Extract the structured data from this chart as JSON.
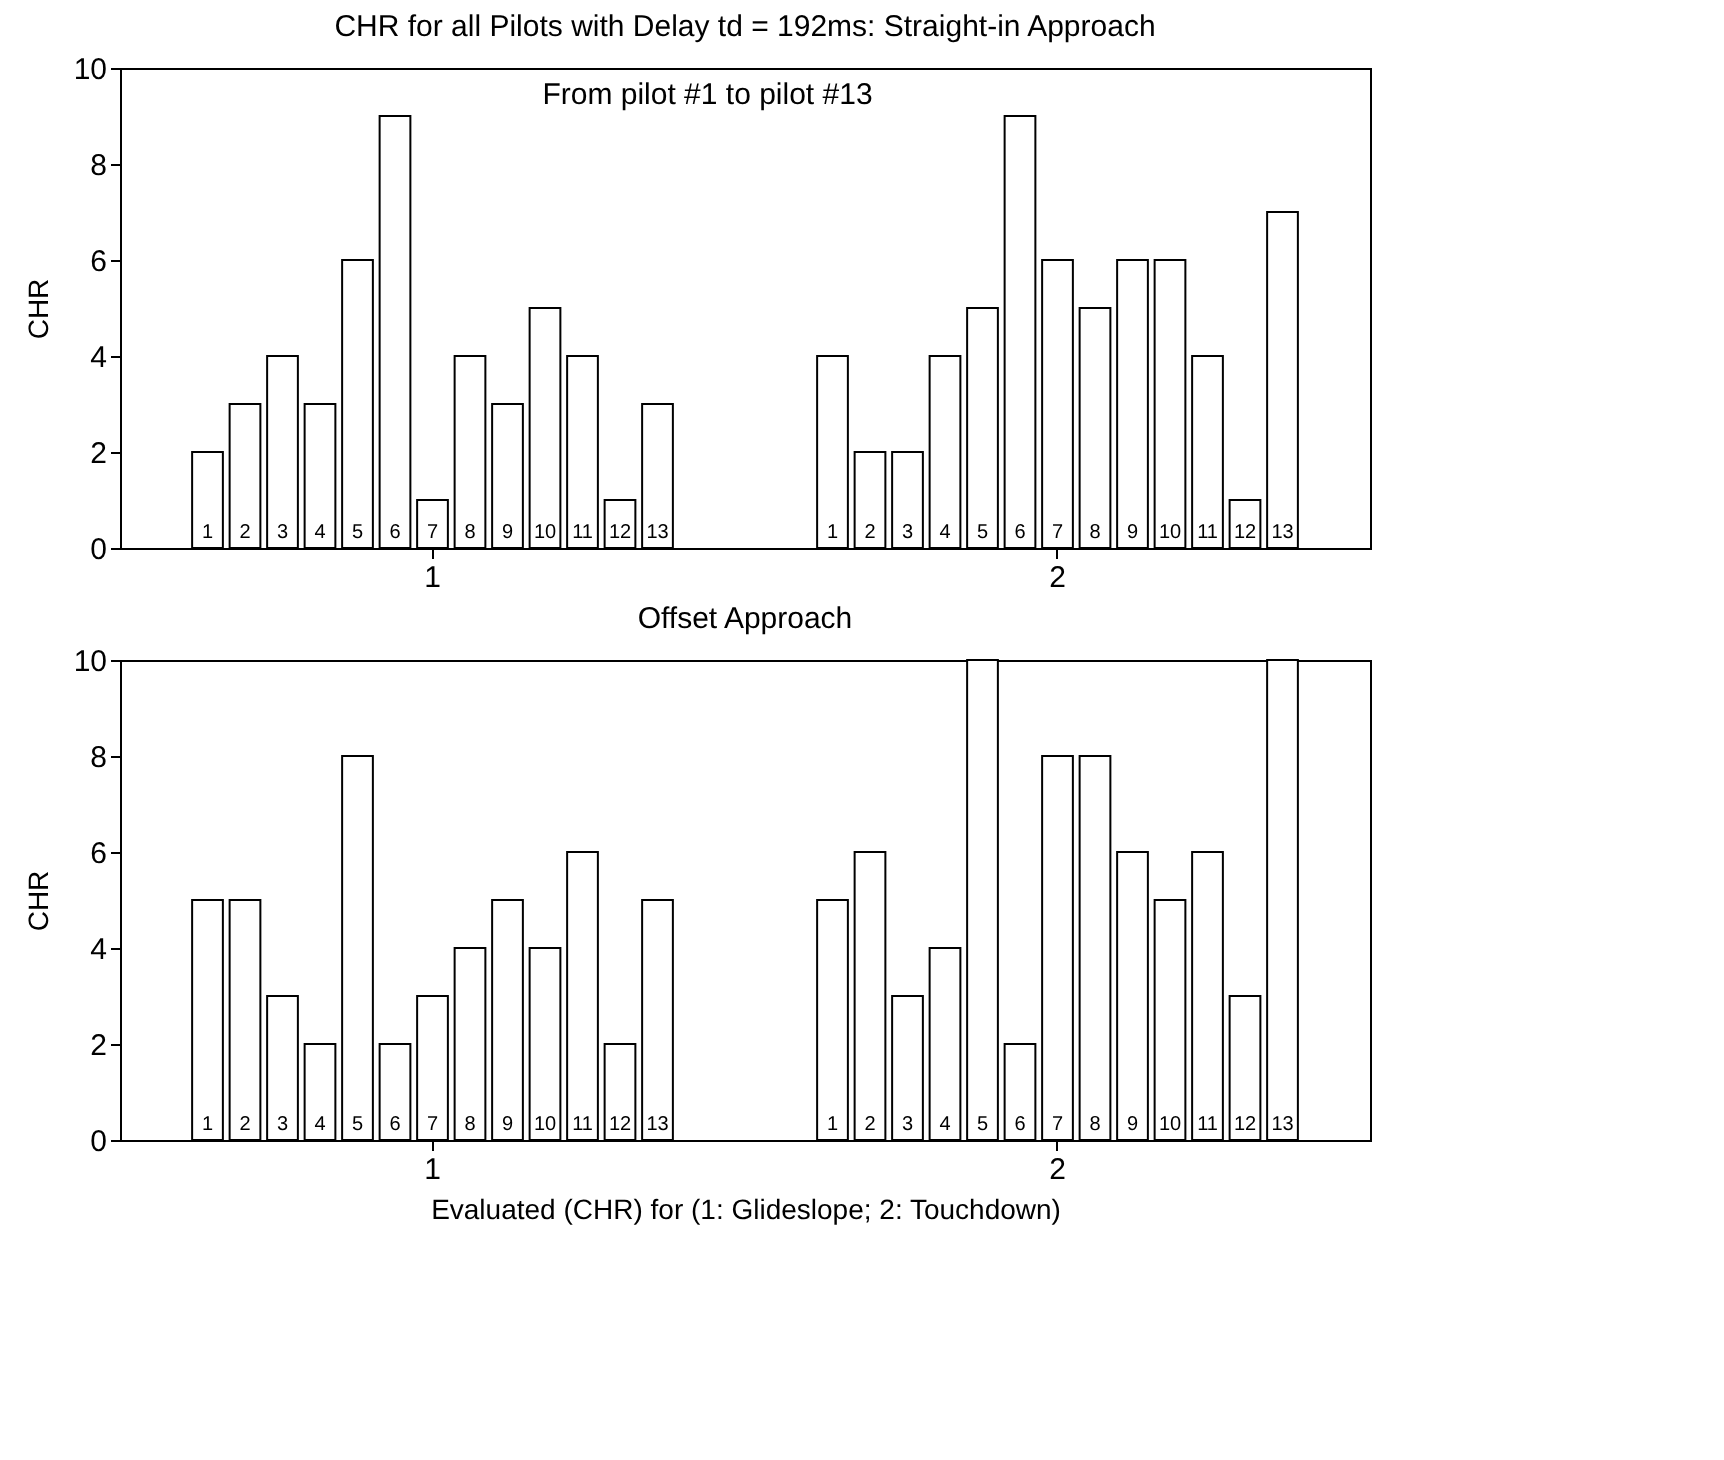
{
  "chart_data": [
    {
      "type": "bar",
      "title": "CHR for all Pilots with Delay td = 192ms: Straight-in Approach",
      "ylabel": "CHR",
      "annotations": [
        "From pilot #1    to pilot #13"
      ],
      "categories": [
        "1",
        "2"
      ],
      "ylim": [
        0,
        10
      ],
      "yticks": [
        0,
        2,
        4,
        6,
        8,
        10
      ],
      "grid": false,
      "legend": false,
      "series": [
        {
          "name": "1",
          "color": "#ffffff",
          "values": [
            2,
            4
          ]
        },
        {
          "name": "2",
          "color": "#ffffff",
          "values": [
            3,
            2
          ]
        },
        {
          "name": "3",
          "color": "#ffffff",
          "values": [
            4,
            2
          ]
        },
        {
          "name": "4",
          "color": "#ffffff",
          "values": [
            3,
            4
          ]
        },
        {
          "name": "5",
          "color": "#ffffff",
          "values": [
            6,
            5
          ]
        },
        {
          "name": "6",
          "color": "#ffffff",
          "values": [
            9,
            9
          ]
        },
        {
          "name": "7",
          "color": "#ffffff",
          "values": [
            1,
            6
          ]
        },
        {
          "name": "8",
          "color": "#ffffff",
          "values": [
            4,
            5
          ]
        },
        {
          "name": "9",
          "color": "#ffffff",
          "values": [
            3,
            6
          ]
        },
        {
          "name": "10",
          "color": "#ffffff",
          "values": [
            5,
            6
          ]
        },
        {
          "name": "11",
          "color": "#ffffff",
          "values": [
            4,
            4
          ]
        },
        {
          "name": "12",
          "color": "#ffffff",
          "values": [
            1,
            1
          ]
        },
        {
          "name": "13",
          "color": "#ffffff",
          "values": [
            3,
            7
          ]
        }
      ]
    },
    {
      "type": "bar",
      "title": "Offset Approach",
      "ylabel": "CHR",
      "xlabel": "Evaluated (CHR) for    (1: Glideslope;  2: Touchdown)",
      "categories": [
        "1",
        "2"
      ],
      "ylim": [
        0,
        10
      ],
      "yticks": [
        0,
        2,
        4,
        6,
        8,
        10
      ],
      "grid": false,
      "legend": false,
      "series": [
        {
          "name": "1",
          "color": "#ffffff",
          "values": [
            5,
            5
          ]
        },
        {
          "name": "2",
          "color": "#ffffff",
          "values": [
            5,
            6
          ]
        },
        {
          "name": "3",
          "color": "#ffffff",
          "values": [
            3,
            3
          ]
        },
        {
          "name": "4",
          "color": "#ffffff",
          "values": [
            2,
            4
          ]
        },
        {
          "name": "5",
          "color": "#ffffff",
          "values": [
            8,
            10
          ]
        },
        {
          "name": "6",
          "color": "#ffffff",
          "values": [
            2,
            2
          ]
        },
        {
          "name": "7",
          "color": "#ffffff",
          "values": [
            3,
            8
          ]
        },
        {
          "name": "8",
          "color": "#ffffff",
          "values": [
            4,
            8
          ]
        },
        {
          "name": "9",
          "color": "#ffffff",
          "values": [
            5,
            6
          ]
        },
        {
          "name": "10",
          "color": "#ffffff",
          "values": [
            4,
            5
          ]
        },
        {
          "name": "11",
          "color": "#ffffff",
          "values": [
            6,
            6
          ]
        },
        {
          "name": "12",
          "color": "#ffffff",
          "values": [
            2,
            3
          ]
        },
        {
          "name": "13",
          "color": "#ffffff",
          "values": [
            5,
            10
          ]
        }
      ]
    }
  ]
}
